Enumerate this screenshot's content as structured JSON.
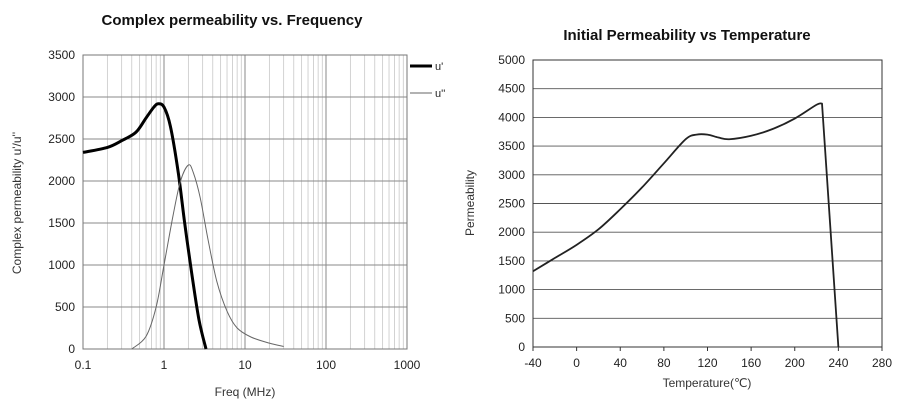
{
  "chart_data": [
    {
      "type": "line",
      "title": "Complex permeability vs. Frequency",
      "xlabel": "Freq (MHz)",
      "ylabel": "Complex permeability u'/u''",
      "x_scale": "log",
      "xlim": [
        0.1,
        1000
      ],
      "ylim": [
        0,
        3500
      ],
      "x_ticks": [
        "0.1",
        "1",
        "10",
        "100",
        "1000"
      ],
      "y_ticks": [
        "0",
        "500",
        "1000",
        "1500",
        "2000",
        "2500",
        "3000",
        "3500"
      ],
      "grid": true,
      "legend_position": "top-right",
      "series": [
        {
          "name": "u'",
          "color": "#000000",
          "line_style": "thick",
          "points": [
            [
              0.1,
              2340
            ],
            [
              0.2,
              2400
            ],
            [
              0.3,
              2480
            ],
            [
              0.45,
              2580
            ],
            [
              0.6,
              2750
            ],
            [
              0.75,
              2880
            ],
            [
              0.85,
              2920
            ],
            [
              1.0,
              2880
            ],
            [
              1.2,
              2650
            ],
            [
              1.5,
              2100
            ],
            [
              1.8,
              1500
            ],
            [
              2.2,
              900
            ],
            [
              2.7,
              350
            ],
            [
              3.3,
              0
            ]
          ]
        },
        {
          "name": "u''",
          "color": "#666666",
          "line_style": "thin",
          "points": [
            [
              0.4,
              0
            ],
            [
              0.6,
              150
            ],
            [
              0.8,
              500
            ],
            [
              1.0,
              1000
            ],
            [
              1.3,
              1600
            ],
            [
              1.6,
              2000
            ],
            [
              2.0,
              2190
            ],
            [
              2.3,
              2100
            ],
            [
              2.8,
              1800
            ],
            [
              3.5,
              1300
            ],
            [
              4.5,
              800
            ],
            [
              6.0,
              450
            ],
            [
              8.0,
              250
            ],
            [
              12.0,
              140
            ],
            [
              20.0,
              70
            ],
            [
              30.0,
              30
            ]
          ]
        }
      ]
    },
    {
      "type": "line",
      "title": "Initial Permeability vs Temperature",
      "xlabel": "Temperature(℃)",
      "ylabel": "Permeability",
      "xlim": [
        -40,
        280
      ],
      "ylim": [
        0,
        5000
      ],
      "x_ticks": [
        "-40",
        "0",
        "40",
        "80",
        "120",
        "160",
        "200",
        "240",
        "280"
      ],
      "y_ticks": [
        "0",
        "500",
        "1000",
        "1500",
        "2000",
        "2500",
        "3000",
        "3500",
        "4000",
        "4500",
        "5000"
      ],
      "grid": true,
      "series": [
        {
          "color": "#222222",
          "points": [
            [
              -40,
              1320
            ],
            [
              -20,
              1550
            ],
            [
              0,
              1780
            ],
            [
              20,
              2050
            ],
            [
              40,
              2400
            ],
            [
              60,
              2780
            ],
            [
              80,
              3200
            ],
            [
              100,
              3620
            ],
            [
              110,
              3700
            ],
            [
              120,
              3700
            ],
            [
              130,
              3650
            ],
            [
              140,
              3620
            ],
            [
              160,
              3680
            ],
            [
              180,
              3800
            ],
            [
              200,
              3980
            ],
            [
              220,
              4220
            ],
            [
              225,
              4240
            ],
            [
              240,
              0
            ]
          ]
        }
      ]
    }
  ]
}
